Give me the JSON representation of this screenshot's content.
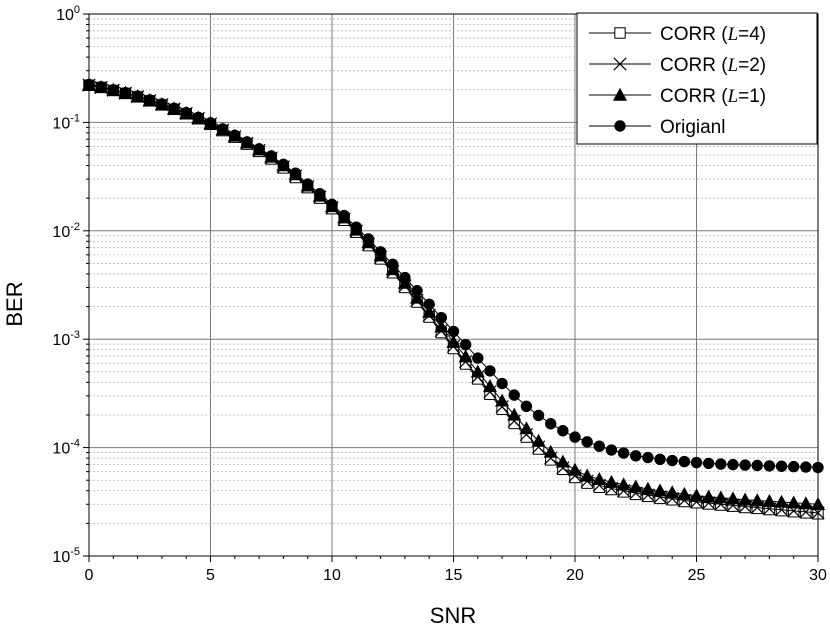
{
  "chart_data": {
    "type": "line",
    "title": "",
    "xlabel": "SNR",
    "ylabel": "BER",
    "xlim": [
      0,
      30
    ],
    "ylim": [
      1e-05,
      1
    ],
    "y_scale": "log",
    "x_ticks": [
      "0",
      "5",
      "10",
      "15",
      "20",
      "25",
      "30"
    ],
    "y_ticks": [
      {
        "base": "10",
        "exp": "0"
      },
      {
        "base": "10",
        "exp": "-1"
      },
      {
        "base": "10",
        "exp": "-2"
      },
      {
        "base": "10",
        "exp": "-3"
      },
      {
        "base": "10",
        "exp": "-4"
      },
      {
        "base": "10",
        "exp": "-5"
      }
    ],
    "grid": true,
    "legend_position": "top-right",
    "x": [
      0,
      0.5,
      1,
      1.5,
      2,
      2.5,
      3,
      3.5,
      4,
      4.5,
      5,
      5.5,
      6,
      6.5,
      7,
      7.5,
      8,
      8.5,
      9,
      9.5,
      10,
      10.5,
      11,
      11.5,
      12,
      12.5,
      13,
      13.5,
      14,
      14.5,
      15,
      15.5,
      16,
      16.5,
      17,
      17.5,
      18,
      18.5,
      19,
      19.5,
      20,
      20.5,
      21,
      21.5,
      22,
      22.5,
      23,
      23.5,
      24,
      24.5,
      25,
      25.5,
      26,
      26.5,
      27,
      27.5,
      28,
      28.5,
      29,
      29.5,
      30
    ],
    "series": [
      {
        "name": "CORR (L=4)",
        "label_pre": "CORR (",
        "label_var": "L",
        "label_post": "=4)",
        "marker": "square-open",
        "values": [
          0.22,
          0.21,
          0.197,
          0.185,
          0.172,
          0.158,
          0.145,
          0.132,
          0.12,
          0.108,
          0.096,
          0.084,
          0.073,
          0.063,
          0.054,
          0.046,
          0.038,
          0.031,
          0.025,
          0.02,
          0.016,
          0.0125,
          0.0097,
          0.0073,
          0.0055,
          0.0041,
          0.003,
          0.0022,
          0.0016,
          0.00115,
          0.00082,
          0.00059,
          0.00043,
          0.00031,
          0.000226,
          0.000167,
          0.000125,
          9.7e-05,
          7.7e-05,
          6.3e-05,
          5.3e-05,
          4.7e-05,
          4.3e-05,
          4.1e-05,
          3.9e-05,
          3.7e-05,
          3.55e-05,
          3.4e-05,
          3.3e-05,
          3.18e-05,
          3.1e-05,
          3.02e-05,
          2.95e-05,
          2.88e-05,
          2.8e-05,
          2.75e-05,
          2.68e-05,
          2.62e-05,
          2.56e-05,
          2.5e-05,
          2.45e-05
        ]
      },
      {
        "name": "CORR (L=2)",
        "label_pre": "CORR (",
        "label_var": "L",
        "label_post": "=2)",
        "marker": "x",
        "values": [
          0.221,
          0.21,
          0.198,
          0.186,
          0.173,
          0.159,
          0.146,
          0.133,
          0.121,
          0.109,
          0.097,
          0.085,
          0.074,
          0.064,
          0.055,
          0.047,
          0.039,
          0.032,
          0.0255,
          0.0205,
          0.0163,
          0.0128,
          0.0099,
          0.0075,
          0.0057,
          0.0042,
          0.0031,
          0.00228,
          0.00166,
          0.0012,
          0.00086,
          0.00062,
          0.00045,
          0.000327,
          0.000238,
          0.000176,
          0.000132,
          0.000101,
          8e-05,
          6.5e-05,
          5.5e-05,
          4.9e-05,
          4.5e-05,
          4.2e-05,
          4e-05,
          3.8e-05,
          3.65e-05,
          3.5e-05,
          3.38e-05,
          3.26e-05,
          3.16e-05,
          3.08e-05,
          3e-05,
          2.93e-05,
          2.86e-05,
          2.8e-05,
          2.73e-05,
          2.67e-05,
          2.61e-05,
          2.55e-05,
          2.5e-05
        ]
      },
      {
        "name": "CORR (L=1)",
        "label_pre": "CORR (",
        "label_var": "L",
        "label_post": "=1)",
        "marker": "triangle-filled",
        "values": [
          0.222,
          0.211,
          0.199,
          0.187,
          0.174,
          0.16,
          0.147,
          0.134,
          0.122,
          0.11,
          0.098,
          0.086,
          0.075,
          0.065,
          0.056,
          0.048,
          0.04,
          0.033,
          0.026,
          0.021,
          0.0168,
          0.0132,
          0.0102,
          0.0078,
          0.0059,
          0.0044,
          0.0033,
          0.0024,
          0.00178,
          0.0013,
          0.00094,
          0.00069,
          0.0005,
          0.000367,
          0.00027,
          0.0002,
          0.00015,
          0.000115,
          9.1e-05,
          7.4e-05,
          6.2e-05,
          5.5e-05,
          5.1e-05,
          4.8e-05,
          4.55e-05,
          4.35e-05,
          4.15e-05,
          4e-05,
          3.85e-05,
          3.72e-05,
          3.6e-05,
          3.52e-05,
          3.45e-05,
          3.38e-05,
          3.3e-05,
          3.25e-05,
          3.2e-05,
          3.15e-05,
          3.1e-05,
          3.05e-05,
          3e-05
        ]
      },
      {
        "name": "Origianl",
        "label_pre": "Origianl",
        "label_var": "",
        "label_post": "",
        "marker": "circle-filled",
        "values": [
          0.224,
          0.213,
          0.2,
          0.188,
          0.175,
          0.161,
          0.148,
          0.135,
          0.123,
          0.111,
          0.099,
          0.087,
          0.076,
          0.066,
          0.057,
          0.049,
          0.041,
          0.034,
          0.027,
          0.022,
          0.0175,
          0.0138,
          0.0108,
          0.0084,
          0.0064,
          0.0049,
          0.0037,
          0.0028,
          0.0021,
          0.00158,
          0.00118,
          0.00089,
          0.00067,
          0.00051,
          0.00039,
          0.000305,
          0.00024,
          0.000198,
          0.000166,
          0.000143,
          0.000125,
          0.000113,
          0.000103,
          9.5e-05,
          8.9e-05,
          8.4e-05,
          8.1e-05,
          7.8e-05,
          7.6e-05,
          7.43e-05,
          7.28e-05,
          7.15e-05,
          7.05e-05,
          6.97e-05,
          6.9e-05,
          6.84e-05,
          6.78e-05,
          6.73e-05,
          6.68e-05,
          6.62e-05,
          6.55e-05
        ]
      }
    ]
  }
}
